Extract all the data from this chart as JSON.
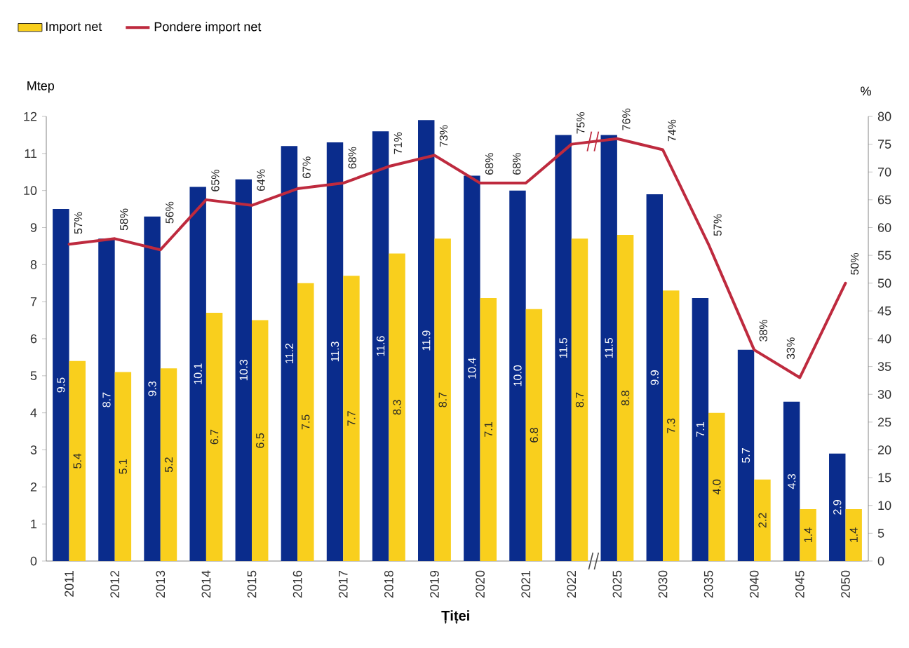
{
  "chart_data": {
    "type": "bar",
    "xlabel": "Țiței",
    "ylabel": "Mtep",
    "y2label": "%",
    "categories": [
      "2011",
      "2012",
      "2013",
      "2014",
      "2015",
      "2016",
      "2017",
      "2018",
      "2019",
      "2020",
      "2021",
      "2022",
      "2025",
      "2030",
      "2035",
      "2040",
      "2045",
      "2050"
    ],
    "series": [
      {
        "color": "#0a2c8c",
        "values": [
          9.5,
          8.7,
          9.3,
          10.1,
          10.3,
          11.2,
          11.3,
          11.6,
          11.9,
          10.4,
          10.0,
          11.5,
          11.5,
          9.9,
          7.1,
          5.7,
          4.3,
          2.9
        ],
        "value_labels": [
          "9.5",
          "8.7",
          "9.3",
          "10.1",
          "10.3",
          "11.2",
          "11.3",
          "11.6",
          "11.9",
          "10.4",
          "10.0",
          "11.5",
          "11.5",
          "9.9",
          "7.1",
          "5.7",
          "4.3",
          "2.9"
        ]
      },
      {
        "name": "Import net",
        "color": "#f9cf1d",
        "values": [
          5.4,
          5.1,
          5.2,
          6.7,
          6.5,
          7.5,
          7.7,
          8.3,
          8.7,
          7.1,
          6.8,
          8.7,
          8.8,
          7.3,
          4.0,
          2.2,
          1.4,
          1.4
        ],
        "value_labels": [
          "5.4",
          "5.1",
          "5.2",
          "6.7",
          "6.5",
          "7.5",
          "7.7",
          "8.3",
          "8.7",
          "7.1",
          "6.8",
          "8.7",
          "8.8",
          "7.3",
          "4.0",
          "2.2",
          "1.4",
          "1.4"
        ]
      },
      {
        "name": "Pondere import net",
        "type": "line",
        "axis": "y2",
        "color": "#be2a3e",
        "values": [
          57,
          58,
          56,
          65,
          64,
          67,
          68,
          71,
          73,
          68,
          68,
          75,
          76,
          74,
          57,
          38,
          33,
          50
        ],
        "value_labels": [
          "57%",
          "58%",
          "56%",
          "65%",
          "64%",
          "67%",
          "68%",
          "71%",
          "73%",
          "68%",
          "68%",
          "75%",
          "76%",
          "74%",
          "57%",
          "38%",
          "33%",
          "50%"
        ]
      }
    ],
    "ylim": [
      0,
      12
    ],
    "yticks": [
      0,
      1,
      2,
      3,
      4,
      5,
      6,
      7,
      8,
      9,
      10,
      11,
      12
    ],
    "y2lim": [
      0,
      80
    ],
    "y2ticks": [
      0,
      5,
      10,
      15,
      20,
      25,
      30,
      35,
      40,
      45,
      50,
      55,
      60,
      65,
      70,
      75,
      80
    ],
    "legend": "top left"
  }
}
